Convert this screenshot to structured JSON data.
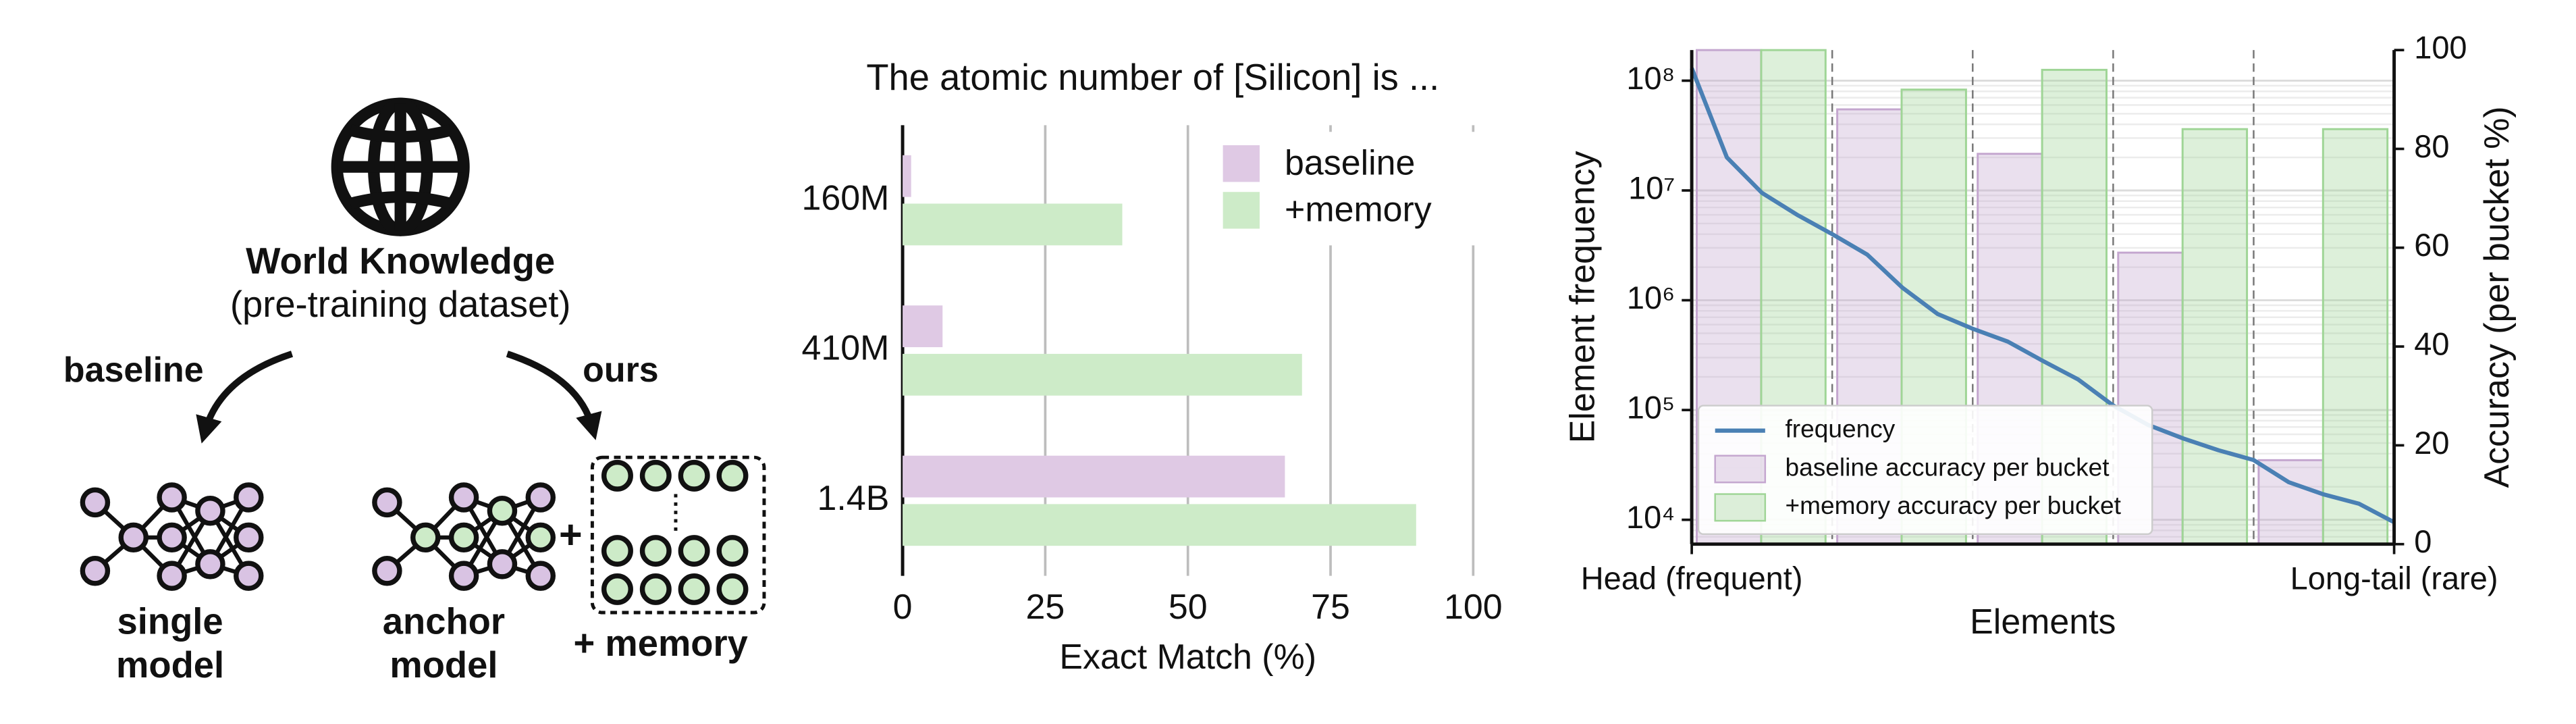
{
  "diagram": {
    "source_title": "World Knowledge",
    "source_subtitle": "(pre-training dataset)",
    "left_arrow_label": "baseline",
    "right_arrow_label": "ours",
    "left_model": [
      "single",
      "model"
    ],
    "right_model": [
      "anchor",
      "model"
    ],
    "memory_label": "+ memory"
  },
  "chart_data": [
    {
      "type": "hbar",
      "title": "The atomic number of [Silicon] is ...",
      "categories": [
        "160M",
        "410M",
        "1.4B"
      ],
      "series": [
        {
          "name": "baseline",
          "color": "#dfc9e4",
          "values": [
            1.5,
            7,
            67
          ]
        },
        {
          "name": "+memory",
          "color": "#cdebc8",
          "values": [
            38.5,
            70,
            90
          ]
        }
      ],
      "xlabel": "Exact Match (%)",
      "xlim": [
        0,
        100
      ],
      "xticks": [
        0,
        25,
        50,
        75,
        100
      ],
      "grid": true,
      "legend": "upper right"
    },
    {
      "type": "bar-line",
      "xlabel": "Elements",
      "xtick_labels": [
        "Head (frequent)",
        "Long-tail (rare)"
      ],
      "ylabel": "Element frequency",
      "log_y": true,
      "ylim": [
        6000,
        190000000
      ],
      "yticks": [
        {
          "value": 10000,
          "label": "10⁴"
        },
        {
          "value": 100000,
          "label": "10⁵"
        },
        {
          "value": 1000000,
          "label": "10⁶"
        },
        {
          "value": 10000000,
          "label": "10⁷"
        },
        {
          "value": 100000000,
          "label": "10⁸"
        }
      ],
      "y2label": "Accuracy (per bucket %)",
      "y2lim": [
        0,
        100
      ],
      "y2ticks": [
        0,
        20,
        40,
        60,
        80,
        100
      ],
      "grid": true,
      "legend": "lower left",
      "series": [
        {
          "name": "frequency",
          "type": "line",
          "color": "#4a80b4",
          "values": [
            130000000,
            20000000,
            9500000,
            6000000,
            4000000,
            2600000,
            1300000,
            750000,
            550000,
            420000,
            280000,
            190000,
            110000,
            73000,
            55000,
            43000,
            35000,
            22000,
            17000,
            14000,
            9500
          ]
        },
        {
          "name": "baseline accuracy per bucket",
          "type": "bar",
          "axis": "y2",
          "color": "#c4a6cf",
          "values": [
            100,
            88,
            79,
            59,
            17
          ]
        },
        {
          "name": "+memory accuracy per bucket",
          "type": "bar",
          "axis": "y2",
          "color": "#9fd596",
          "values": [
            100,
            92,
            96,
            84,
            84
          ]
        }
      ]
    }
  ]
}
